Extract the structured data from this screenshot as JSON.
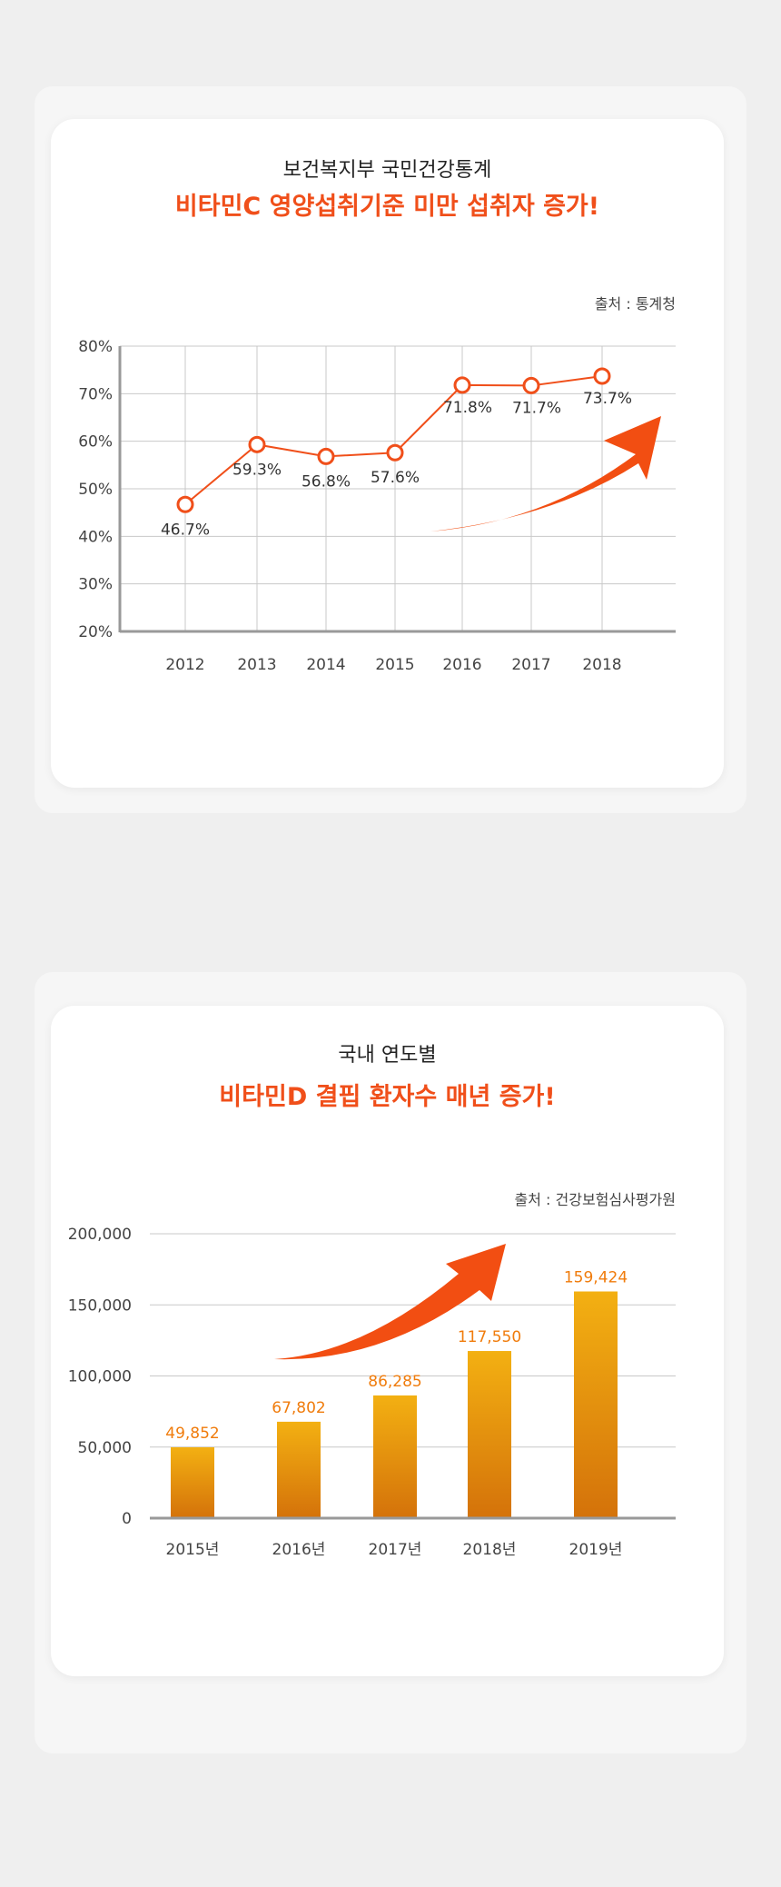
{
  "chart_data": [
    {
      "type": "line",
      "title_top": "보건복지부 국민건강통계",
      "title": "비타민C 영양섭취기준 미만 섭취자 증가!",
      "source": "출처 : 통계청",
      "categories": [
        "2012",
        "2013",
        "2014",
        "2015",
        "2016",
        "2017",
        "2018"
      ],
      "values": [
        46.7,
        59.3,
        56.8,
        57.6,
        71.8,
        71.7,
        73.7
      ],
      "data_labels": [
        "46.7%",
        "59.3%",
        "56.8%",
        "57.6%",
        "71.8%",
        "71.7%",
        "73.7%"
      ],
      "yticks": [
        "20%",
        "30%",
        "40%",
        "50%",
        "60%",
        "70%",
        "80%"
      ],
      "ylim": [
        20,
        80
      ],
      "grid": true,
      "line_color": "#f04f1a",
      "annotation": "upward-arrow"
    },
    {
      "type": "bar",
      "title_top": "국내 연도별",
      "title": "비타민D 결핍 환자수 매년 증가!",
      "source": "출처 : 건강보험심사평가원",
      "categories": [
        "2015년",
        "2016년",
        "2017년",
        "2018년",
        "2019년"
      ],
      "values": [
        49852,
        67802,
        86285,
        117550,
        159424
      ],
      "data_labels": [
        "49,852",
        "67,802",
        "86,285",
        "117,550",
        "159,424"
      ],
      "yticks": [
        "0",
        "50,000",
        "100,000",
        "150,000",
        "200,000"
      ],
      "ylim": [
        0,
        200000
      ],
      "grid": true,
      "bar_color_top": "#f3b012",
      "bar_color_bottom": "#d4720a",
      "label_color": "#f07c0c",
      "annotation": "upward-arrow"
    }
  ]
}
